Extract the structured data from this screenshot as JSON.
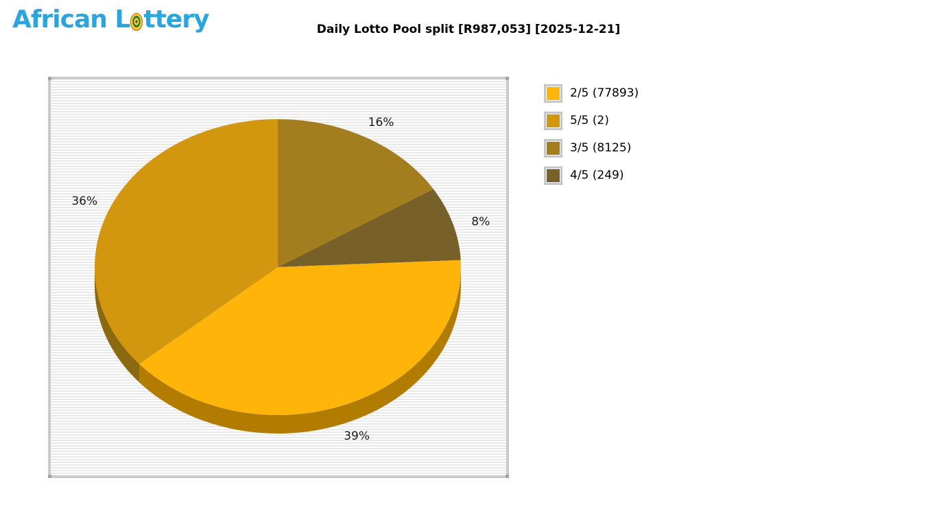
{
  "logo": {
    "text_before": "African L",
    "text_after": "ttery",
    "color": "#2AA5DE"
  },
  "header": {
    "title": "Daily Lotto Pool split [R987,053] [2025-12-21]"
  },
  "chart_data": {
    "type": "pie",
    "style": "3d",
    "title": "Daily Lotto Pool split [R987,053] [2025-12-21]",
    "game": "Daily Lotto",
    "pool_total": "R987,053",
    "date": "2025-12-21",
    "start": "12-oclock",
    "direction": "clockwise",
    "legend_position": "right",
    "slices": [
      {
        "label": "3/5",
        "winners": 8125,
        "percent": 16,
        "color": "#A37D1E",
        "side_color": "#74591A"
      },
      {
        "label": "4/5",
        "winners": 249,
        "percent": 8,
        "color": "#776128",
        "side_color": "#55461D"
      },
      {
        "label": "2/5",
        "winners": 77893,
        "percent": 39,
        "color": "#FFB40A",
        "side_color": "#B27C00"
      },
      {
        "label": "5/5",
        "winners": 2,
        "percent": 36,
        "color": "#D2970F",
        "side_color": "#8B6910"
      }
    ],
    "legend": [
      {
        "text": "2/5 (77893)",
        "color": "#FFB40A"
      },
      {
        "text": "5/5 (2)",
        "color": "#D2970F"
      },
      {
        "text": "3/5 (8125)",
        "color": "#A37D1E"
      },
      {
        "text": "4/5 (249)",
        "color": "#776128"
      }
    ]
  }
}
